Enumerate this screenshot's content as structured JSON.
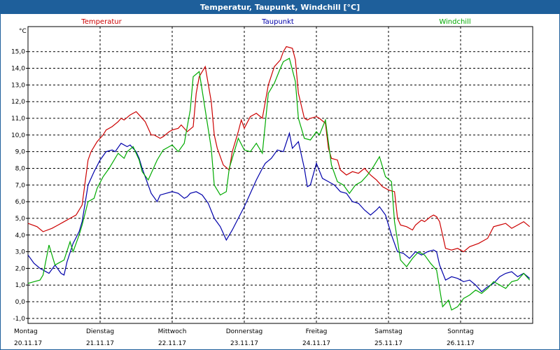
{
  "window": {
    "title": "Temperatur, Taupunkt, Windchill [°C]"
  },
  "chart_data": {
    "type": "line",
    "title": "Temperatur, Taupunkt, Windchill [°C]",
    "ylabel": "°C",
    "ylim": [
      -1.3,
      16.5
    ],
    "xlim": [
      0,
      168
    ],
    "yticks": [
      "15,0",
      "14,0",
      "13,0",
      "12,0",
      "11,0",
      "10,0",
      "9,0",
      "8,0",
      "7,0",
      "6,0",
      "5,0",
      "4,0",
      "3,0",
      "2,0",
      "1,0",
      "0,0",
      "-1,0"
    ],
    "ytick_values": [
      15,
      14,
      13,
      12,
      11,
      10,
      9,
      8,
      7,
      6,
      5,
      4,
      3,
      2,
      1,
      0,
      -1
    ],
    "grid": true,
    "days": [
      {
        "name": "Montag",
        "date": "20.11.17"
      },
      {
        "name": "Dienstag",
        "date": "21.11.17"
      },
      {
        "name": "Mittwoch",
        "date": "22.11.17"
      },
      {
        "name": "Donnerstag",
        "date": "23.11.17"
      },
      {
        "name": "Freitag",
        "date": "24.11.17"
      },
      {
        "name": "Samstag",
        "date": "25.11.17"
      },
      {
        "name": "Sonntag",
        "date": "26.11.17"
      }
    ],
    "series": [
      {
        "name": "Temperatur",
        "color": "#cc0000",
        "x": [
          0,
          3,
          5,
          8,
          10,
          12,
          14,
          16,
          18,
          20,
          21,
          23,
          25,
          26,
          28,
          30,
          31,
          32,
          34,
          36,
          37,
          39,
          41,
          42,
          44,
          45,
          47,
          48,
          50,
          51,
          53,
          55,
          56,
          57,
          59,
          61,
          62,
          63,
          65,
          67,
          68,
          70,
          71,
          72,
          74,
          76,
          78,
          80,
          82,
          84,
          85,
          86,
          88,
          89,
          90,
          92,
          93,
          94,
          96,
          97,
          99,
          100,
          101,
          103,
          104,
          106,
          108,
          110,
          112,
          114,
          116,
          118,
          120,
          122,
          123,
          124,
          126,
          128,
          129,
          131,
          132,
          134,
          135,
          136,
          137,
          139,
          141,
          143,
          145,
          147,
          150,
          153,
          155,
          157,
          159,
          161,
          163,
          165,
          167
        ],
        "values": [
          4.7,
          4.5,
          4.2,
          4.4,
          4.6,
          4.8,
          5.0,
          5.2,
          5.8,
          8.5,
          9.0,
          9.6,
          10.0,
          10.3,
          10.5,
          10.8,
          11.0,
          10.9,
          11.2,
          11.4,
          11.2,
          10.8,
          10.0,
          10.0,
          9.8,
          9.9,
          10.2,
          10.3,
          10.4,
          10.6,
          10.2,
          10.5,
          12.5,
          13.5,
          14.1,
          12.0,
          10.0,
          9.2,
          8.2,
          7.9,
          9.0,
          10.2,
          10.9,
          10.4,
          11.1,
          11.3,
          11.0,
          13.0,
          14.1,
          14.5,
          15.0,
          15.3,
          15.2,
          14.5,
          12.5,
          11.0,
          10.9,
          11.0,
          11.1,
          11.0,
          10.7,
          9.2,
          8.6,
          8.5,
          7.9,
          7.6,
          7.8,
          7.7,
          8.0,
          7.6,
          7.3,
          6.9,
          6.7,
          6.6,
          5.0,
          4.6,
          4.5,
          4.3,
          4.6,
          4.9,
          4.8,
          5.1,
          5.2,
          5.1,
          4.8,
          3.2,
          3.1,
          3.2,
          3.0,
          3.3,
          3.5,
          3.8,
          4.5,
          4.6,
          4.7,
          4.4,
          4.6,
          4.8,
          4.5
        ]
      },
      {
        "name": "Taupunkt",
        "color": "#0000aa",
        "x": [
          0,
          2,
          4,
          6,
          7,
          9,
          11,
          12,
          13,
          15,
          17,
          18,
          20,
          22,
          24,
          26,
          28,
          29,
          31,
          33,
          34,
          36,
          37,
          38,
          40,
          41,
          43,
          44,
          46,
          48,
          50,
          52,
          53,
          54,
          56,
          58,
          60,
          62,
          64,
          66,
          68,
          70,
          72,
          74,
          76,
          78,
          79,
          81,
          83,
          85,
          87,
          88,
          90,
          92,
          93,
          94,
          96,
          98,
          100,
          102,
          104,
          106,
          108,
          110,
          112,
          114,
          116,
          117,
          119,
          121,
          123,
          125,
          127,
          129,
          131,
          133,
          135,
          136,
          137,
          139,
          141,
          143,
          145,
          147,
          149,
          151,
          153,
          155,
          157,
          159,
          161,
          163,
          165,
          167
        ],
        "values": [
          2.8,
          2.3,
          2.0,
          1.8,
          1.7,
          2.2,
          1.7,
          1.6,
          2.4,
          3.5,
          4.2,
          4.8,
          7.0,
          7.8,
          8.5,
          9.0,
          9.1,
          9.0,
          9.5,
          9.3,
          9.4,
          9.0,
          8.6,
          8.0,
          7.0,
          6.5,
          6.0,
          6.4,
          6.5,
          6.6,
          6.5,
          6.2,
          6.3,
          6.5,
          6.6,
          6.4,
          5.9,
          5.0,
          4.5,
          3.7,
          4.3,
          5.0,
          5.7,
          6.5,
          7.3,
          8.0,
          8.3,
          8.6,
          9.1,
          9.0,
          10.1,
          9.2,
          9.6,
          8.0,
          6.9,
          7.0,
          8.3,
          7.4,
          7.2,
          7.0,
          6.6,
          6.5,
          6.0,
          5.9,
          5.5,
          5.2,
          5.5,
          5.7,
          5.2,
          4.0,
          3.0,
          2.9,
          2.6,
          3.0,
          2.8,
          3.0,
          3.1,
          3.0,
          2.2,
          1.3,
          1.5,
          1.4,
          1.2,
          1.3,
          1.0,
          0.6,
          0.9,
          1.1,
          1.5,
          1.7,
          1.8,
          1.5,
          1.7,
          1.4
        ]
      },
      {
        "name": "Windchill",
        "color": "#00aa00",
        "x": [
          0,
          2,
          4,
          5,
          7,
          9,
          10,
          12,
          14,
          15,
          17,
          18,
          20,
          22,
          23,
          25,
          27,
          28,
          30,
          32,
          33,
          35,
          37,
          38,
          40,
          41,
          43,
          45,
          47,
          48,
          50,
          52,
          54,
          55,
          57,
          59,
          61,
          62,
          64,
          66,
          67,
          69,
          70,
          72,
          74,
          76,
          78,
          80,
          82,
          84,
          85,
          87,
          89,
          90,
          92,
          94,
          96,
          97,
          99,
          101,
          103,
          105,
          107,
          109,
          111,
          113,
          115,
          117,
          119,
          121,
          122,
          124,
          126,
          128,
          130,
          132,
          134,
          136,
          138,
          140,
          141,
          143,
          145,
          147,
          149,
          151,
          153,
          155,
          157,
          159,
          161,
          163,
          165,
          167
        ],
        "values": [
          1.1,
          1.2,
          1.3,
          1.6,
          3.4,
          2.2,
          2.3,
          2.5,
          3.6,
          3.0,
          4.0,
          4.6,
          6.0,
          6.2,
          6.8,
          7.5,
          8.0,
          8.3,
          8.9,
          8.6,
          9.0,
          9.3,
          8.5,
          7.8,
          7.3,
          7.7,
          8.5,
          9.1,
          9.3,
          9.4,
          9.0,
          9.5,
          11.5,
          13.5,
          13.8,
          11.5,
          9.2,
          7.0,
          6.4,
          6.6,
          8.0,
          9.2,
          9.8,
          9.1,
          9.0,
          9.5,
          8.9,
          12.5,
          13.1,
          14.0,
          14.4,
          14.6,
          13.2,
          11.0,
          9.8,
          9.7,
          10.2,
          10.0,
          10.9,
          8.2,
          7.2,
          7.0,
          6.5,
          7.0,
          7.2,
          7.6,
          8.1,
          8.7,
          7.5,
          7.2,
          4.8,
          2.5,
          2.1,
          2.6,
          3.0,
          2.8,
          2.3,
          1.9,
          -0.3,
          0.1,
          -0.5,
          -0.3,
          0.2,
          0.4,
          0.7,
          0.5,
          0.8,
          1.2,
          1.0,
          0.8,
          1.2,
          1.3,
          1.7,
          1.3
        ]
      }
    ]
  }
}
